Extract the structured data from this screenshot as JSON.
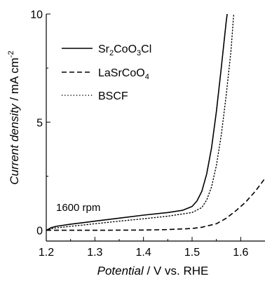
{
  "chart_data": {
    "type": "line",
    "xlabel": {
      "italic": "Potential",
      "rest": " / V vs. RHE"
    },
    "ylabel": {
      "italic": "Current density",
      "rest": " / mA cm",
      "sup": "-2"
    },
    "xlim": [
      1.2,
      1.65
    ],
    "ylim": [
      -0.5,
      10
    ],
    "xticks": [
      "1.2",
      "1.3",
      "1.4",
      "1.5",
      "1.6"
    ],
    "yticks": [
      "0",
      "5",
      "10"
    ],
    "annotation": "1600 rpm",
    "legend_position": "top-left",
    "series": [
      {
        "name": "Sr2CoO3Cl",
        "legend": [
          {
            "t": "Sr",
            "s": ""
          },
          {
            "t": "2",
            "s": "sub"
          },
          {
            "t": "CoO",
            "s": ""
          },
          {
            "t": "3",
            "s": "sub"
          },
          {
            "t": "Cl",
            "s": ""
          }
        ],
        "dash": "solid",
        "x": [
          1.2,
          1.21,
          1.22,
          1.25,
          1.3,
          1.35,
          1.4,
          1.45,
          1.48,
          1.5,
          1.51,
          1.52,
          1.53,
          1.54,
          1.55,
          1.56,
          1.57,
          1.575,
          1.58
        ],
        "y": [
          0.0,
          0.12,
          0.18,
          0.28,
          0.42,
          0.56,
          0.7,
          0.82,
          0.92,
          1.1,
          1.35,
          1.8,
          2.6,
          3.8,
          5.5,
          7.5,
          9.6,
          10.5,
          11.0
        ]
      },
      {
        "name": "LaSrCoO4",
        "legend": [
          {
            "t": "LaSrCoO",
            "s": ""
          },
          {
            "t": "4",
            "s": "sub"
          }
        ],
        "dash": "dashed",
        "x": [
          1.2,
          1.3,
          1.4,
          1.45,
          1.5,
          1.52,
          1.55,
          1.57,
          1.59,
          1.61,
          1.63,
          1.65
        ],
        "y": [
          0.0,
          0.0,
          0.01,
          0.03,
          0.08,
          0.14,
          0.3,
          0.55,
          0.9,
          1.3,
          1.8,
          2.4
        ]
      },
      {
        "name": "BSCF",
        "legend": [
          {
            "t": "BSCF",
            "s": ""
          }
        ],
        "dash": "dotted",
        "x": [
          1.2,
          1.21,
          1.22,
          1.25,
          1.3,
          1.35,
          1.4,
          1.45,
          1.5,
          1.52,
          1.53,
          1.54,
          1.55,
          1.56,
          1.57,
          1.58,
          1.585,
          1.59
        ],
        "y": [
          0.0,
          0.07,
          0.11,
          0.18,
          0.3,
          0.42,
          0.53,
          0.65,
          0.82,
          1.05,
          1.4,
          2.0,
          3.0,
          4.4,
          6.2,
          8.3,
          9.8,
          11.0
        ]
      }
    ]
  }
}
